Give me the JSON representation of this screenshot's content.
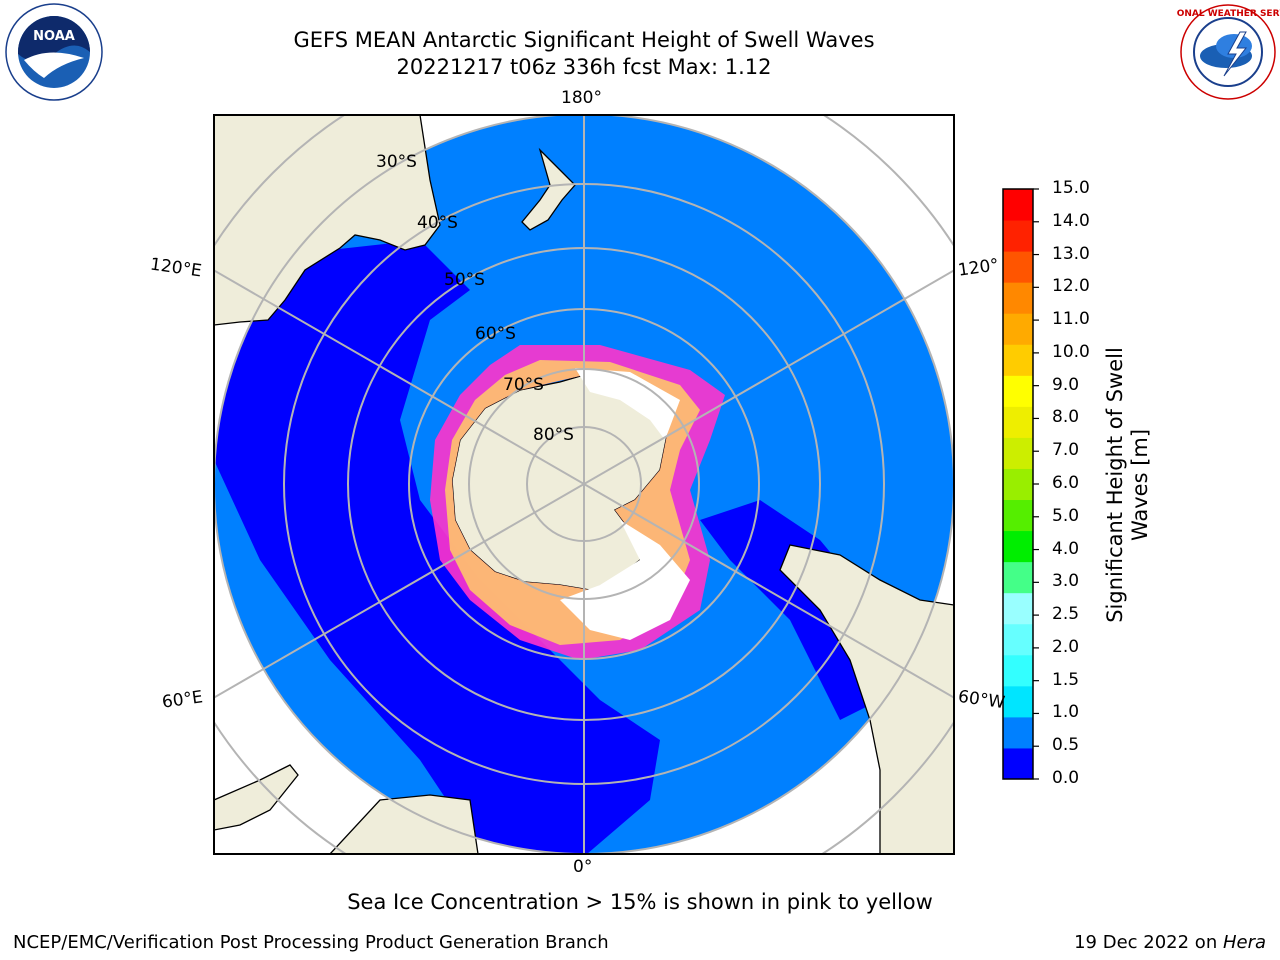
{
  "header": {
    "title_line1": "GEFS MEAN Antarctic Significant Height of Swell Waves",
    "title_line2": "20221217 t06z 336h fcst   Max: 1.12"
  },
  "logos": {
    "left": "noaa-logo",
    "left_text": "NOAA",
    "right": "nws-logo",
    "right_text": "NATIONAL WEATHER SERVICE"
  },
  "map": {
    "projection": "south-polar-stereographic",
    "longitude_labels": {
      "top": "180°",
      "bottom": "0°",
      "upper_left": "120°E",
      "lower_left": "60°E",
      "upper_right": "120°",
      "lower_right": "60°W"
    },
    "latitude_labels": [
      "30°S",
      "40°S",
      "50°S",
      "60°S",
      "70°S",
      "80°S"
    ],
    "colors": {
      "ocean_default": "#0080ff",
      "ocean_low": "#0000ff",
      "land": "#efedda",
      "sea_ice_white": "#ffffff",
      "ice_pink": "#ff33cc",
      "ice_yellow": "#ffcc66",
      "gridline": "#b4b4b4"
    }
  },
  "colorbar": {
    "label_line1": "Significant Height of Swell",
    "label_line2": "Waves [m]",
    "ticks": [
      "0.0",
      "0.5",
      "1.0",
      "1.5",
      "2.0",
      "2.5",
      "3.0",
      "4.0",
      "5.0",
      "6.0",
      "7.0",
      "8.0",
      "9.0",
      "10.0",
      "11.0",
      "12.0",
      "13.0",
      "14.0",
      "15.0"
    ],
    "colors": [
      "#0000ff",
      "#0080ff",
      "#00e5ff",
      "#33ffff",
      "#66ffff",
      "#99ffff",
      "#44ff88",
      "#00ee00",
      "#55ee00",
      "#99ee00",
      "#ccee00",
      "#eeee00",
      "#ffff00",
      "#ffcc00",
      "#ffaa00",
      "#ff8800",
      "#ff5500",
      "#ff2200",
      "#ff0000"
    ]
  },
  "caption": "Sea Ice Concentration > 15% is shown in pink to yellow",
  "footer": {
    "left": "NCEP/EMC/Verification Post Processing Product Generation Branch",
    "right_prefix": "19 Dec 2022 on ",
    "right_host": "Hera"
  }
}
